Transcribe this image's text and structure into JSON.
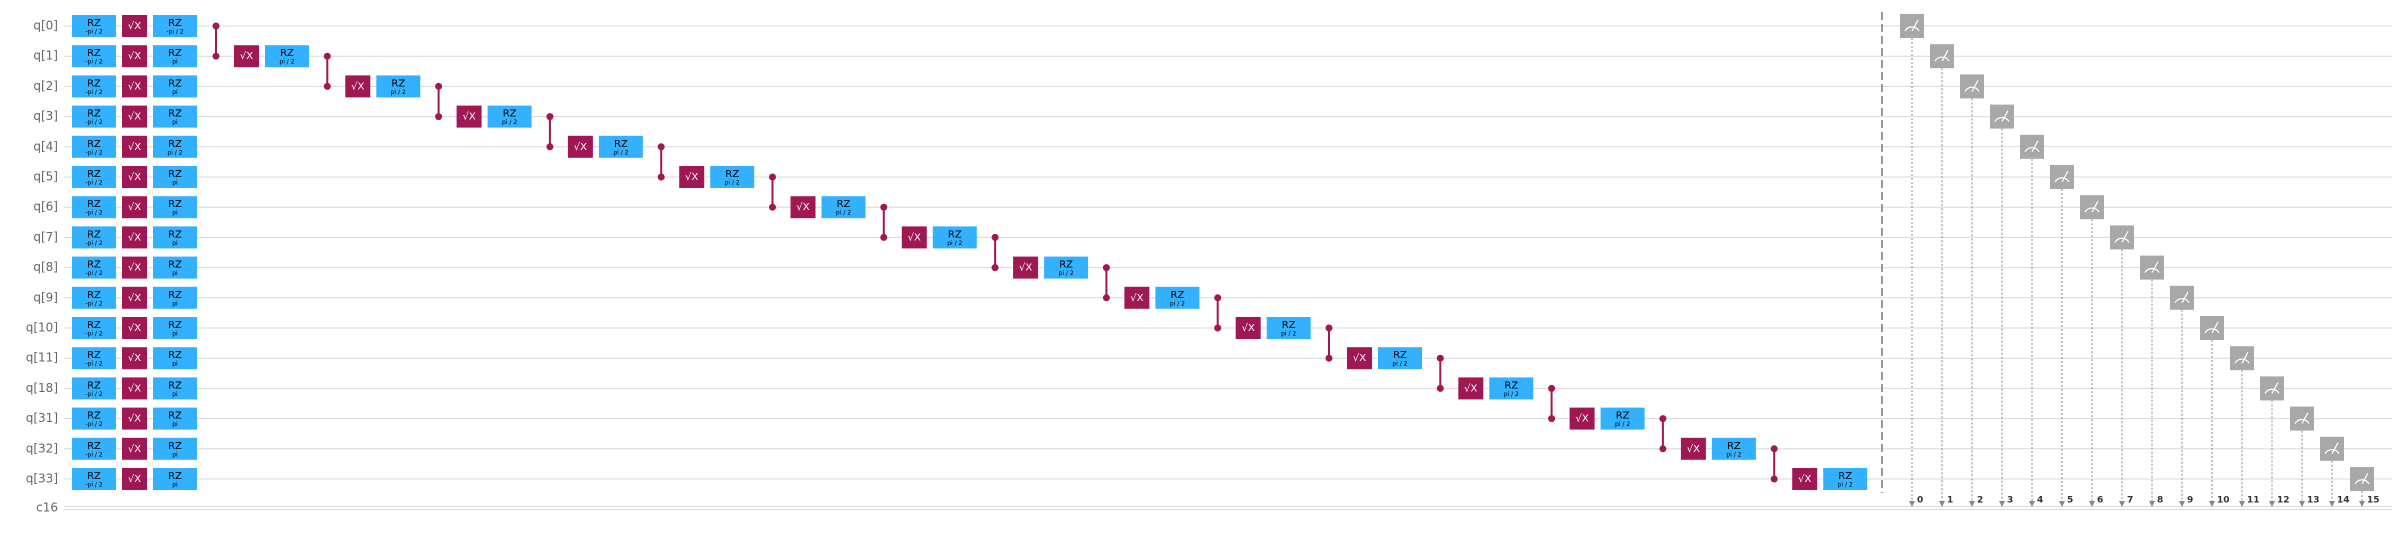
{
  "qubits": [
    "q[0]",
    "q[1]",
    "q[2]",
    "q[3]",
    "q[4]",
    "q[5]",
    "q[6]",
    "q[7]",
    "q[8]",
    "q[9]",
    "q[10]",
    "q[11]",
    "q[18]",
    "q[31]",
    "q[32]",
    "q[33]"
  ],
  "classical_register": "c16",
  "gate_labels": {
    "rz": "RZ",
    "sx": "√X"
  },
  "layer_1_rz_params": [
    "-pi / 2",
    "-pi / 2",
    "-pi / 2",
    "-pi / 2",
    "-pi / 2",
    "-pi / 2",
    "-pi / 2",
    "-pi / 2",
    "-pi / 2",
    "-pi / 2",
    "-pi / 2",
    "-pi / 2",
    "-pi / 2",
    "-pi / 2",
    "-pi / 2",
    "-pi / 2"
  ],
  "layer_2_rz_params": [
    "-pi / 2",
    "pi",
    "pi",
    "pi",
    "pi / 2",
    "pi",
    "pi",
    "pi",
    "pi",
    "pi",
    "pi",
    "pi",
    "pi",
    "pi",
    "pi",
    "pi"
  ],
  "ladder_rz_params": [
    "pi / 2",
    "pi / 2",
    "pi / 2",
    "pi / 2",
    "pi / 2",
    "pi / 2",
    "pi / 2",
    "pi / 2",
    "pi / 2",
    "pi / 2",
    "pi / 2",
    "pi / 2",
    "pi / 2",
    "pi / 2",
    "pi / 2"
  ],
  "measure_bits": [
    "0",
    "1",
    "2",
    "3",
    "4",
    "5",
    "6",
    "7",
    "8",
    "9",
    "10",
    "11",
    "12",
    "13",
    "14",
    "15"
  ]
}
